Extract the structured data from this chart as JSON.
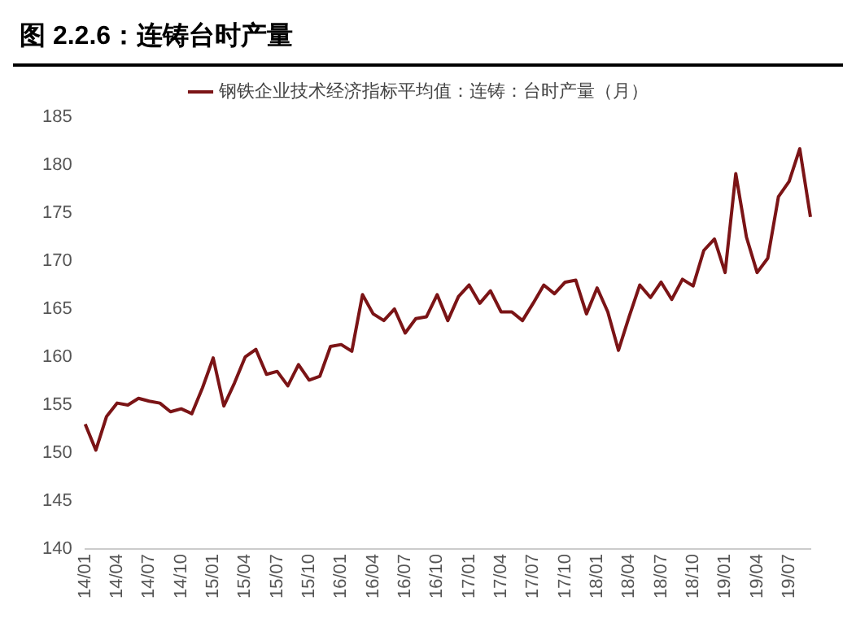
{
  "chart_data": {
    "type": "line",
    "title": "图 2.2.6：连铸台时产量",
    "categories": [
      "14/01",
      null,
      null,
      "14/04",
      null,
      null,
      "14/07",
      null,
      null,
      "14/10",
      null,
      null,
      "15/01",
      null,
      null,
      "15/04",
      null,
      null,
      "15/07",
      null,
      null,
      "15/10",
      null,
      null,
      "16/01",
      null,
      null,
      "16/04",
      null,
      null,
      "16/07",
      null,
      null,
      "16/10",
      null,
      null,
      "17/01",
      null,
      null,
      "17/04",
      null,
      null,
      "17/07",
      null,
      null,
      "17/10",
      null,
      null,
      "18/01",
      null,
      null,
      "18/04",
      null,
      null,
      "18/07",
      null,
      null,
      "18/10",
      null,
      null,
      "19/01",
      null,
      null,
      "19/04",
      null,
      null,
      "19/07",
      null,
      null
    ],
    "series": [
      {
        "name": "钢铁企业技术经济指标平均值：连铸：台时产量（月）",
        "color": "#7b1416",
        "values": [
          153,
          150.3,
          153.8,
          155.2,
          155,
          155.7,
          155.4,
          155.2,
          154.3,
          154.6,
          154.1,
          156.8,
          159.9,
          154.9,
          157.3,
          160,
          160.8,
          158.2,
          158.5,
          157,
          159.2,
          157.6,
          158,
          161.1,
          161.3,
          160.6,
          166.5,
          164.5,
          163.8,
          165,
          162.5,
          164,
          164.2,
          166.5,
          163.8,
          166.3,
          167.5,
          165.6,
          166.9,
          164.7,
          164.7,
          163.8,
          165.6,
          167.5,
          166.6,
          167.8,
          168,
          164.5,
          167.2,
          164.7,
          160.7,
          164.2,
          167.5,
          166.2,
          167.8,
          166,
          168.1,
          167.4,
          171.1,
          172.3,
          168.8,
          179.1,
          172.5,
          168.8,
          170.3,
          176.7,
          178.3,
          181.7,
          174.6
        ]
      }
    ],
    "ylim": [
      140,
      185
    ],
    "yticks": [
      140,
      145,
      150,
      155,
      160,
      165,
      170,
      175,
      180,
      185
    ],
    "grid": false,
    "legend": "top",
    "marker": "none",
    "line_style": "solid"
  }
}
